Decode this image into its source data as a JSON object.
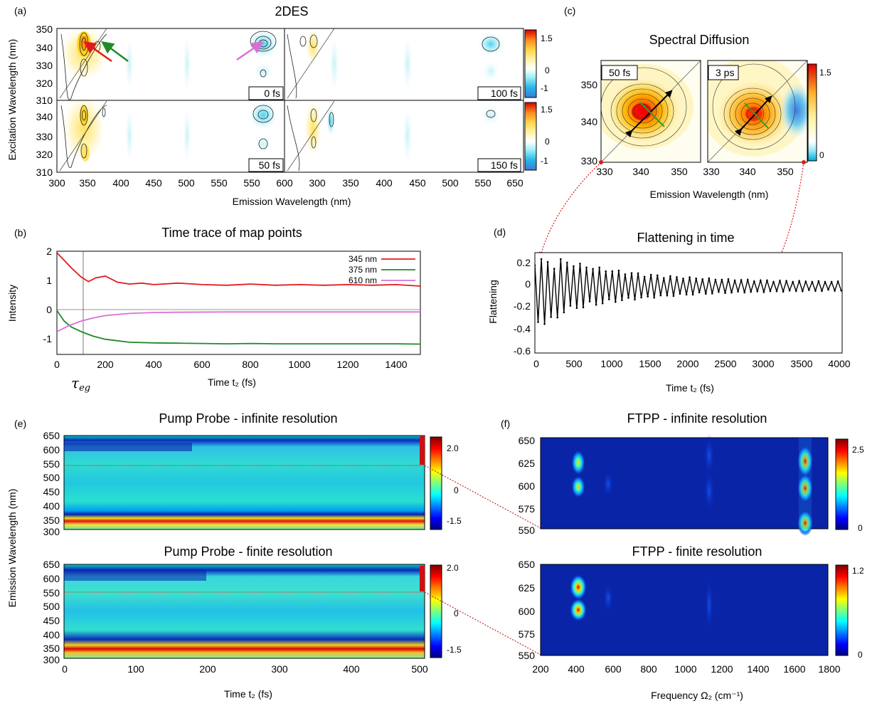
{
  "colors": {
    "jet": [
      "#00007f",
      "#0000ff",
      "#007fff",
      "#00ffff",
      "#7fff7f",
      "#ffff00",
      "#ff7f00",
      "#ff0000",
      "#7f0000"
    ],
    "diverge": [
      "#3b78d8",
      "#27b8e8",
      "#66e0f4",
      "#d8f6fa",
      "#ffffff",
      "#fff3b0",
      "#ffd84a",
      "#ff9a1f",
      "#ff3a1a",
      "#d40000"
    ],
    "red": "#e31a1c",
    "green": "#1f8a2a",
    "violet": "#da70d6"
  },
  "panels": {
    "a": {
      "tag": "(a)",
      "title": "2DES",
      "xlabel": "Emission Wavelength (nm)",
      "ylabel": "Excitation Wavelength (nm)",
      "x_ticks": [
        "300",
        "350",
        "400",
        "450",
        "500",
        "550",
        "600",
        "650"
      ],
      "y_ticks_top": [
        "350",
        "340",
        "330",
        "320",
        "310"
      ],
      "y_ticks_bottom": [
        "340",
        "330",
        "320",
        "310"
      ],
      "maps": [
        {
          "time": "0 fs"
        },
        {
          "time": "100 fs"
        },
        {
          "time": "50 fs"
        },
        {
          "time": "150 fs"
        }
      ],
      "cbar_top": [
        "1.5",
        "0",
        "-1"
      ],
      "cbar_bottom": [
        "1.5",
        "0",
        "-1"
      ]
    },
    "b": {
      "tag": "(b)",
      "title": "Time trace of map points",
      "xlabel": "Time t₂ (fs)",
      "ylabel": "Intensity",
      "tau_label": "τ",
      "tau_sub": "eg",
      "x_ticks": [
        "0",
        "200",
        "400",
        "600",
        "800",
        "1000",
        "1200",
        "1400"
      ],
      "y_ticks": [
        "2",
        "1",
        "0",
        "-1"
      ]
    },
    "c": {
      "tag": "(c)",
      "title": "Spectral Diffusion",
      "xlabel": "Emission Wavelength (nm)",
      "x_ticks_left": [
        "330",
        "340",
        "350"
      ],
      "x_ticks_right": [
        "330",
        "340",
        "350"
      ],
      "y_ticks": [
        "350",
        "340",
        "330"
      ],
      "maps": [
        {
          "time": "50 fs"
        },
        {
          "time": "3 ps"
        }
      ],
      "cbar": [
        "1.5",
        "0"
      ]
    },
    "d": {
      "tag": "(d)",
      "title": "Flattening in time",
      "xlabel": "Time t₂ (fs)",
      "ylabel": "Flattening",
      "x_ticks": [
        "0",
        "500",
        "1000",
        "1500",
        "2000",
        "2500",
        "3000",
        "3500",
        "4000"
      ],
      "y_ticks": [
        "0.2",
        "0",
        "-0.2",
        "-0.4",
        "-0.6"
      ]
    },
    "e": {
      "tag": "(e)",
      "title_top": "Pump Probe - infinite resolution",
      "title_bottom": "Pump Probe - finite resolution",
      "ylabel": "Emission Wavelength (nm)",
      "xlabel": "Time t₂ (fs)",
      "y_ticks": [
        "650",
        "600",
        "550",
        "500",
        "450",
        "400",
        "350",
        "300"
      ],
      "x_ticks": [
        "0",
        "100",
        "200",
        "300",
        "400",
        "500"
      ],
      "cbar_top": [
        "2.0",
        "0",
        "-1.5"
      ],
      "cbar_bottom": [
        "2.0",
        "0",
        "-1.5"
      ]
    },
    "f": {
      "tag": "(f)",
      "title_top": "FTPP - infinite resolution",
      "title_bottom": "FTPP - finite resolution",
      "xlabel": "Frequency Ω₂ (cm⁻¹)",
      "y_ticks": [
        "650",
        "625",
        "600",
        "575",
        "550"
      ],
      "x_ticks": [
        "200",
        "400",
        "600",
        "800",
        "1000",
        "1200",
        "1400",
        "1600",
        "1800"
      ],
      "cbar_top": [
        "2.5",
        "0"
      ],
      "cbar_bottom": [
        "1.2",
        "0"
      ]
    }
  },
  "chart_data": [
    {
      "panel": "b",
      "type": "line",
      "xlabel": "Time t₂ (fs)",
      "ylabel": "Intensity",
      "xlim": [
        0,
        1500
      ],
      "ylim": [
        -1.4,
        2.0
      ],
      "series": [
        {
          "name": "345 nm",
          "color": "#e31a1c",
          "x": [
            0,
            30,
            60,
            100,
            130,
            160,
            200,
            250,
            300,
            350,
            400,
            500,
            600,
            700,
            800,
            900,
            1000,
            1100,
            1200,
            1300,
            1400,
            1500
          ],
          "y": [
            1.95,
            1.7,
            1.45,
            1.15,
            1.0,
            1.12,
            1.18,
            0.98,
            0.92,
            0.95,
            0.9,
            0.95,
            0.9,
            0.88,
            0.92,
            0.88,
            0.9,
            0.88,
            0.9,
            0.88,
            0.9,
            0.85
          ]
        },
        {
          "name": "375 nm",
          "color": "#1f8a2a",
          "x": [
            0,
            30,
            60,
            100,
            150,
            200,
            250,
            300,
            400,
            500,
            600,
            700,
            800,
            900,
            1000,
            1200,
            1400,
            1500
          ],
          "y": [
            0.05,
            -0.3,
            -0.5,
            -0.65,
            -0.8,
            -0.9,
            -0.95,
            -1.0,
            -1.02,
            -1.03,
            -1.04,
            -1.05,
            -1.04,
            -1.05,
            -1.05,
            -1.05,
            -1.05,
            -1.06
          ]
        },
        {
          "name": "610 nm",
          "color": "#da70d6",
          "x": [
            0,
            50,
            100,
            150,
            200,
            300,
            400,
            500,
            700,
            1000,
            1500
          ],
          "y": [
            -0.65,
            -0.45,
            -0.3,
            -0.2,
            -0.12,
            -0.05,
            -0.02,
            -0.01,
            0,
            0,
            0
          ]
        }
      ]
    },
    {
      "panel": "d",
      "type": "line",
      "xlabel": "Time t₂ (fs)",
      "ylabel": "Flattening",
      "xlim": [
        0,
        4050
      ],
      "ylim": [
        -0.6,
        0.3
      ],
      "series": [
        {
          "name": "",
          "color": "#000000",
          "amplitude0": 0.25,
          "decay_fs": 1100,
          "period_fs": 85,
          "floor": 0.03
        }
      ]
    }
  ]
}
